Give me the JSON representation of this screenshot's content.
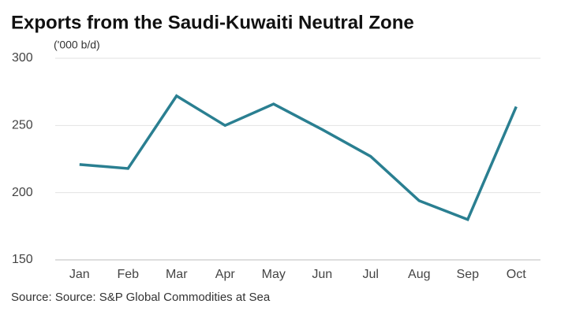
{
  "chart_data": {
    "type": "line",
    "title": "Exports from the Saudi-Kuwaiti Neutral Zone",
    "y_label": "('000 b/d)",
    "source": "Source: Source: S&P Global Commodities at Sea",
    "categories": [
      "Jan",
      "Feb",
      "Mar",
      "Apr",
      "May",
      "Jun",
      "Jul",
      "Aug",
      "Sep",
      "Oct"
    ],
    "series": [
      {
        "name": "Exports",
        "color": "#2a7f91",
        "values": [
          221,
          218,
          272,
          250,
          266,
          247,
          227,
          194,
          180,
          264
        ]
      }
    ],
    "ylim": [
      150,
      300
    ],
    "yticks": [
      150,
      200,
      250,
      300
    ],
    "grid": true
  }
}
